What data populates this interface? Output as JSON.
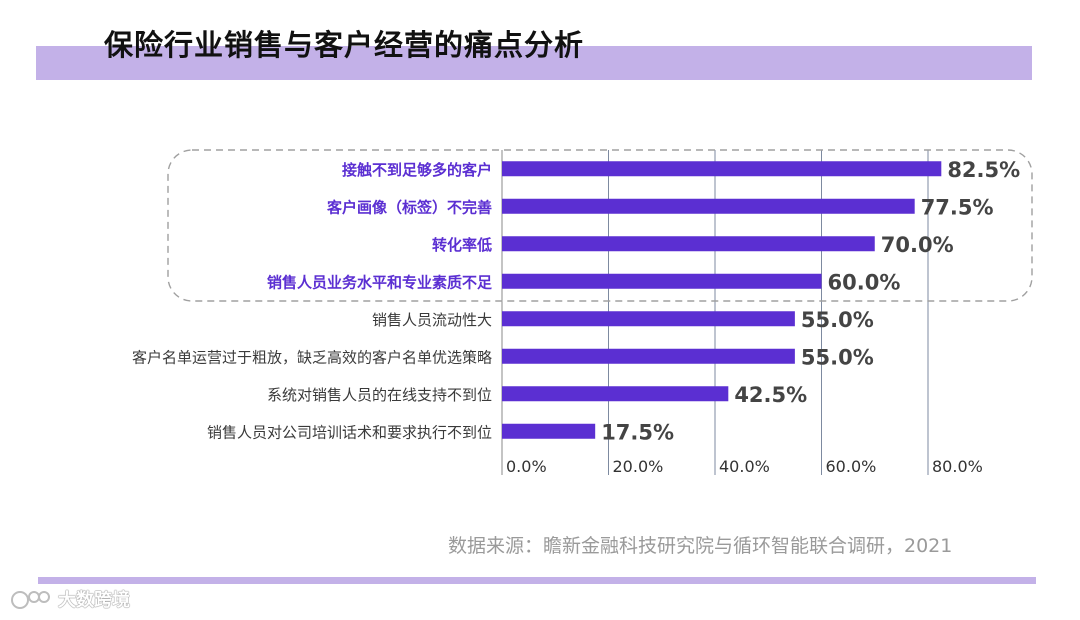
{
  "header": {
    "title": "保险行业销售与客户经营的痛点分析"
  },
  "chart_data": {
    "type": "bar",
    "orientation": "horizontal",
    "categories": [
      "接触不到足够多的客户",
      "客户画像（标签）不完善",
      "转化率低",
      "销售人员业务水平和专业素质不足",
      "销售人员流动性大",
      "客户名单运营过于粗放，缺乏高效的客户名单优选策略",
      "系统对销售人员的在线支持不到位",
      "销售人员对公司培训话术和要求执行不到位"
    ],
    "values": [
      82.5,
      77.5,
      70.0,
      60.0,
      55.0,
      55.0,
      42.5,
      17.5
    ],
    "value_labels": [
      "82.5%",
      "77.5%",
      "70.0%",
      "60.0%",
      "55.0%",
      "55.0%",
      "42.5%",
      "17.5%"
    ],
    "highlighted_count": 4,
    "xlim": [
      0,
      80
    ],
    "xticks": [
      0,
      20,
      40,
      60,
      80
    ],
    "xtick_labels": [
      "0.0%",
      "20.0%",
      "40.0%",
      "60.0%",
      "80.0%"
    ],
    "grid": "vertical",
    "legend": "none",
    "bar_color": "#5b2fd2",
    "highlight_label_color": "#5b2fd2",
    "normal_label_color": "#3a3a3a",
    "value_label_color": "#444444"
  },
  "footer": {
    "source": "数据来源：瞻新金融科技研究院与循环智能联合调研，2021",
    "watermark": "大数跨境"
  },
  "colors": {
    "accent_band": "#c3b1e8",
    "bar": "#5b2fd2"
  }
}
